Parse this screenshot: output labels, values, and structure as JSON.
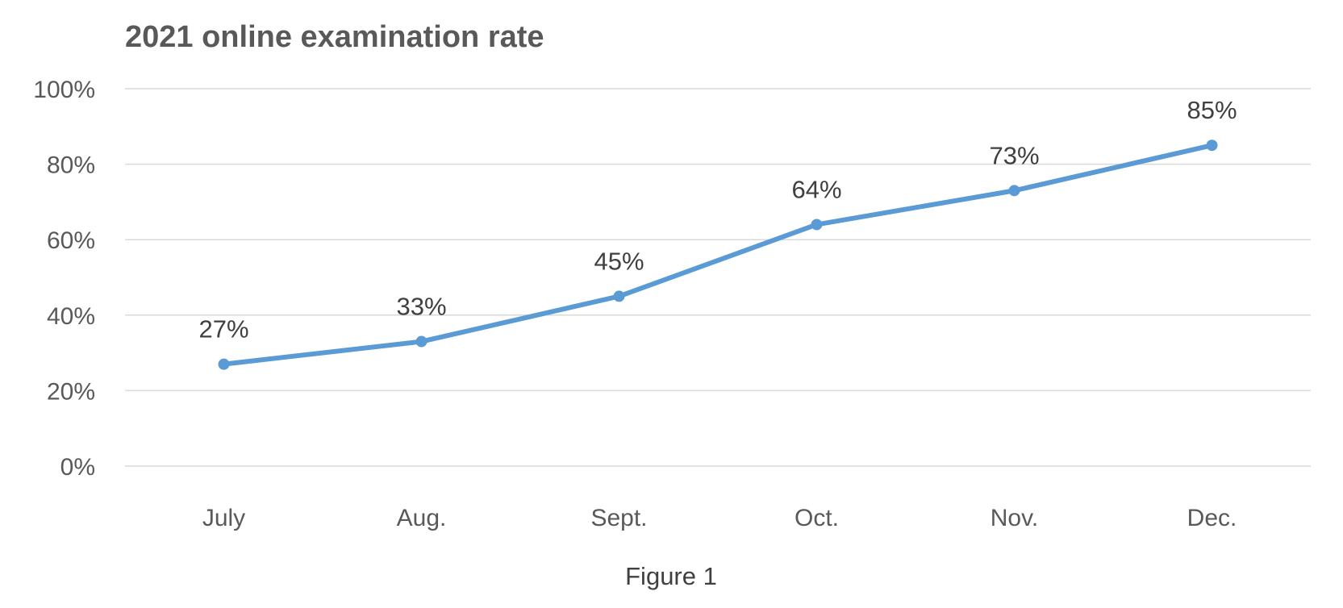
{
  "chart_data": {
    "type": "line",
    "title": "2021 online examination rate",
    "categories": [
      "July",
      "Aug.",
      "Sept.",
      "Oct.",
      "Nov.",
      "Dec."
    ],
    "series": [
      {
        "values": [
          27,
          33,
          45,
          64,
          73,
          85
        ],
        "labels": [
          "27%",
          "33%",
          "45%",
          "64%",
          "73%",
          "85%"
        ],
        "color": "#5b9bd5"
      }
    ],
    "y_ticks": [
      "0%",
      "20%",
      "40%",
      "60%",
      "80%",
      "100%"
    ],
    "ylim": [
      0,
      100
    ],
    "grid": true,
    "legend": "none",
    "xlabel": "",
    "ylabel": ""
  },
  "caption": "Figure 1"
}
